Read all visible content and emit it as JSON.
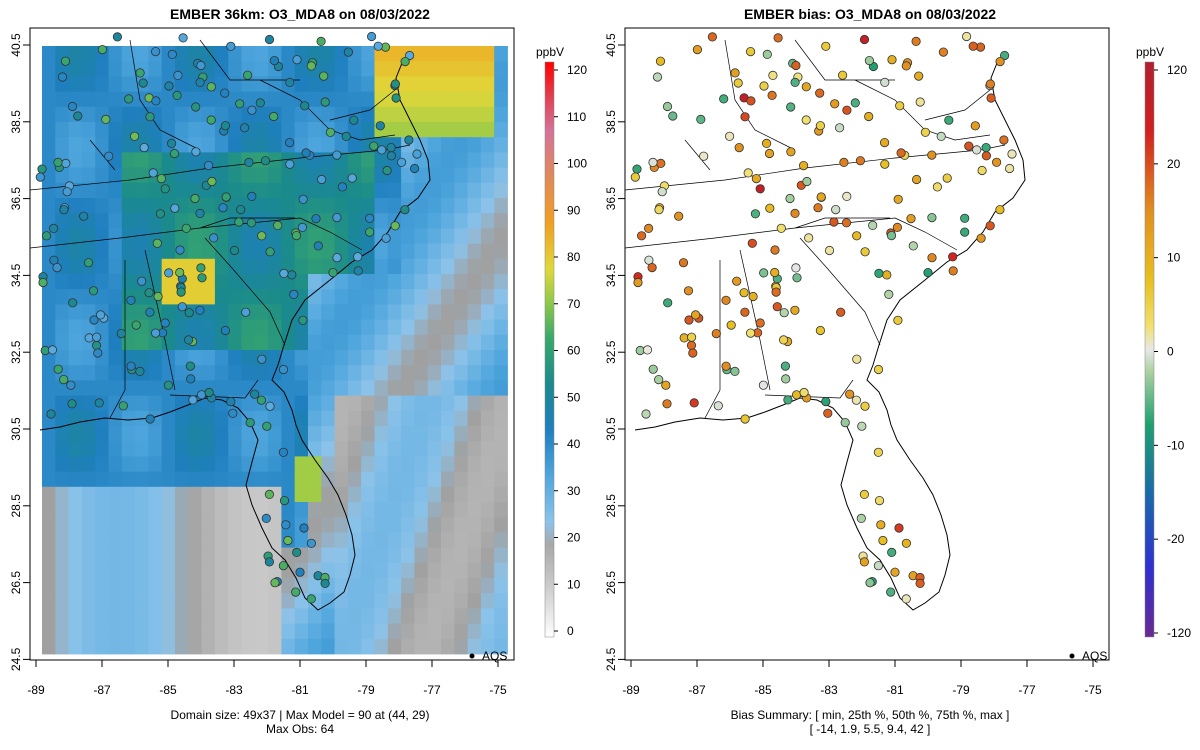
{
  "left_panel": {
    "title": "EMBER 36km: O3_MDA8 on 08/03/2022",
    "footer_line1": "Domain size: 49x37 | Max Model = 90 at (44, 29)",
    "footer_line2": "Max Obs: 64",
    "legend_label": "AQS",
    "colorbar_unit": "ppbV",
    "colorbar_ticks": [
      "120",
      "110",
      "100",
      "90",
      "80",
      "70",
      "60",
      "50",
      "40",
      "30",
      "20",
      "10",
      "0"
    ]
  },
  "right_panel": {
    "title": "EMBER bias: O3_MDA8 on 08/03/2022",
    "footer_line1": "Bias Summary: [ min, 25th %, 50th %, 75th %, max ]",
    "footer_line2": "[ -14,   1.9,   5.5,   9.4,   42 ]",
    "legend_label": "AQS",
    "colorbar_unit": "ppbV",
    "colorbar_ticks": [
      "120",
      "20",
      "10",
      "0",
      "-10",
      "-20",
      "-120"
    ]
  },
  "axes": {
    "x_ticks": [
      "-89",
      "-87",
      "-85",
      "-83",
      "-81",
      "-79",
      "-77",
      "-75"
    ],
    "y_ticks": [
      "40.5",
      "38.5",
      "36.5",
      "34.5",
      "32.5",
      "30.5",
      "28.5",
      "26.5",
      "24.5"
    ]
  },
  "chart_data": [
    {
      "type": "heatmap",
      "title": "EMBER 36km: O3_MDA8 on 08/03/2022",
      "x_range": [
        -89,
        -75
      ],
      "y_range": [
        24.5,
        40.5
      ],
      "colorbar": {
        "unit": "ppbV",
        "min": 0,
        "max": 120
      },
      "domain_size": "49x37",
      "max_model": 90,
      "max_model_at": [
        44,
        29
      ],
      "max_obs": 64
    },
    {
      "type": "scatter",
      "title": "EMBER bias: O3_MDA8 on 08/03/2022",
      "x_range": [
        -89,
        -75
      ],
      "y_range": [
        24.5,
        40.5
      ],
      "colorbar": {
        "unit": "ppbV",
        "ticks": [
          120,
          20,
          10,
          0,
          -10,
          -20,
          -120
        ]
      },
      "bias_summary": {
        "min": -14,
        "p25": 1.9,
        "median": 5.5,
        "p75": 9.4,
        "max": 42
      }
    }
  ]
}
